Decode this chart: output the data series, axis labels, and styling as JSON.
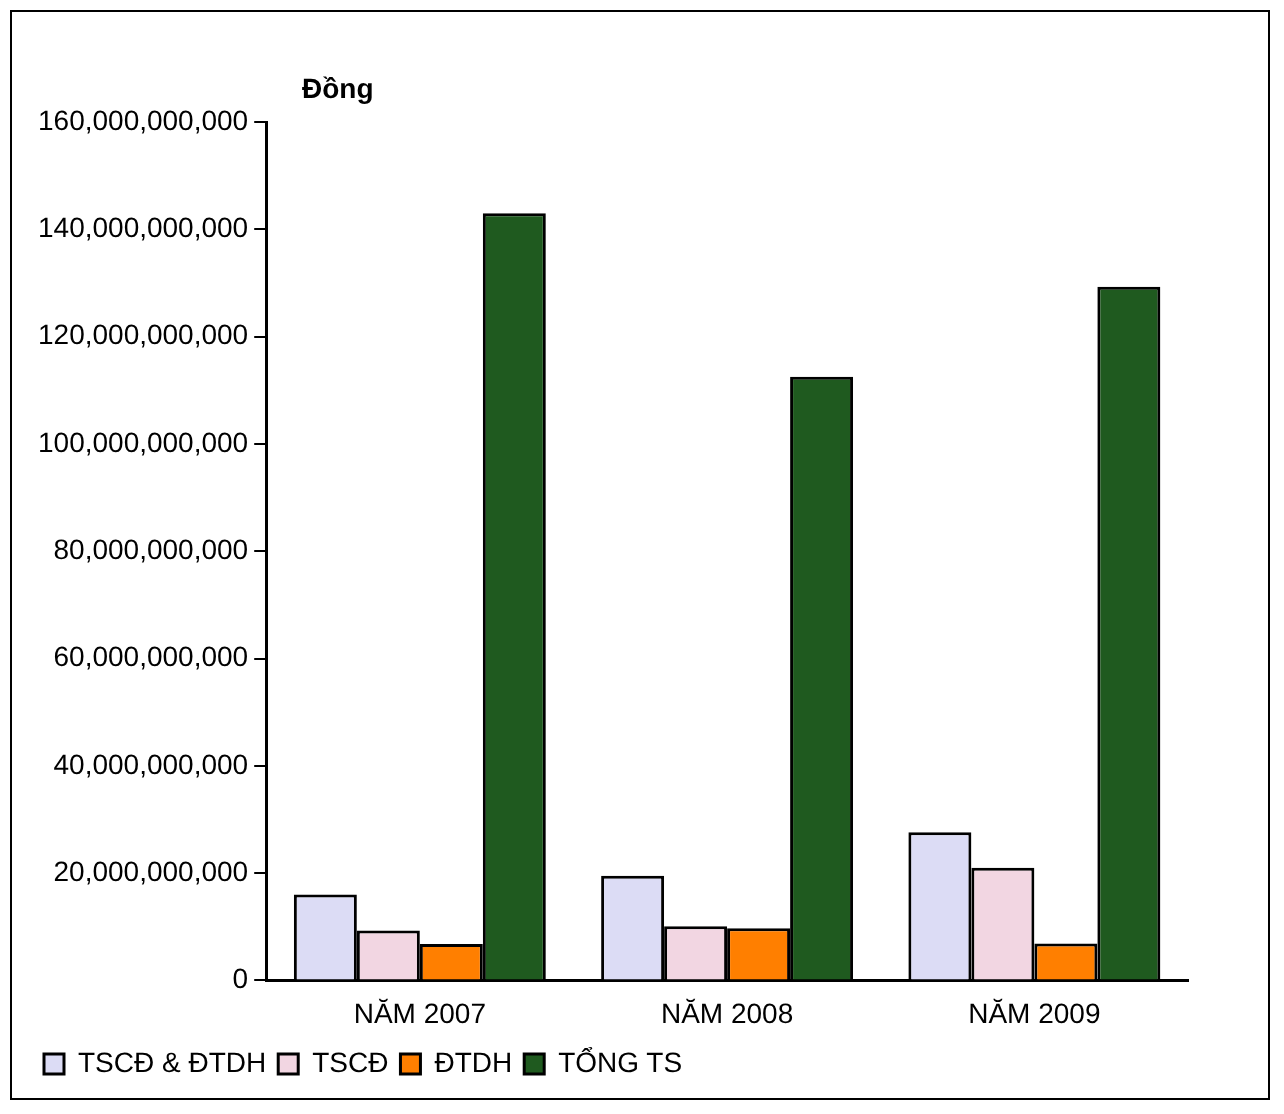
{
  "chart_data": {
    "type": "bar",
    "ylabel": "Đồng",
    "categories": [
      "NĂM 2007",
      "NĂM 2008",
      "NĂM 2009"
    ],
    "series": [
      {
        "name": "TSCĐ & ĐTDH",
        "color": "#dcdcf5",
        "values": [
          16000000000,
          19500000000,
          27600000000
        ]
      },
      {
        "name": "TSCĐ",
        "color": "#f2d6e2",
        "values": [
          9300000000,
          10100000000,
          21000000000
        ]
      },
      {
        "name": "ĐTDH",
        "color": "#ff7f00",
        "values": [
          6800000000,
          9700000000,
          6900000000
        ]
      },
      {
        "name": "TỔNG TS",
        "color": "#1f5a1f",
        "values": [
          143000000000,
          112500000000,
          129300000000
        ]
      }
    ],
    "ylim": [
      0,
      160000000000
    ],
    "yticks": [
      0,
      {
        "value": 20000000000,
        "label": "20,000,000,000"
      },
      {
        "value": 40000000000,
        "label": "40,000,000,000"
      },
      {
        "value": 60000000000,
        "label": "60,000,000,000"
      },
      {
        "value": 80000000000,
        "label": "80,000,000,000"
      },
      {
        "value": 100000000000,
        "label": "100,000,000,000"
      },
      {
        "value": 120000000000,
        "label": "120,000,000,000"
      },
      {
        "value": 140000000000,
        "label": "140,000,000,000"
      },
      {
        "value": 160000000000,
        "label": "160,000,000,000"
      }
    ],
    "grid": false,
    "legend": "bottom left"
  }
}
